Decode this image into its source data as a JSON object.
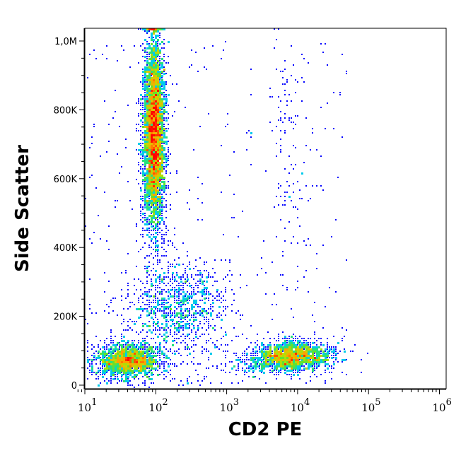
{
  "chart_data": {
    "type": "scatter",
    "subtype": "flow-cytometry density plot",
    "xlabel": "CD2 PE",
    "ylabel": "Side Scatter",
    "x_scale": "log",
    "xlim": [
      10,
      1100000
    ],
    "ylim": [
      0,
      1040000
    ],
    "x_ticks": [
      {
        "value": 10,
        "base": "10",
        "exp": "1"
      },
      {
        "value": 100,
        "base": "10",
        "exp": "2"
      },
      {
        "value": 1000,
        "base": "10",
        "exp": "3"
      },
      {
        "value": 10000,
        "base": "10",
        "exp": "4"
      },
      {
        "value": 100000,
        "base": "10",
        "exp": "5"
      },
      {
        "value": 1000000,
        "base": "10",
        "exp": "6"
      }
    ],
    "y_ticks": [
      {
        "value": 0,
        "label": "0"
      },
      {
        "value": 200000,
        "label": "200K"
      },
      {
        "value": 400000,
        "label": "400K"
      },
      {
        "value": 600000,
        "label": "600K"
      },
      {
        "value": 800000,
        "label": "800K"
      },
      {
        "value": 1000000,
        "label": "1,0M"
      }
    ],
    "grid": false,
    "color_scale": [
      "#0000ff",
      "#00a0ff",
      "#00e0e0",
      "#40e040",
      "#c0e000",
      "#ffa000",
      "#ff0000"
    ],
    "populations": [
      {
        "center_x": 40,
        "log_sd_x": 0.15,
        "center_y": 70000,
        "sd_y": 25000,
        "count": 1600
      },
      {
        "center_x": 95,
        "log_sd_x": 0.075,
        "center_y": 730000,
        "sd_y": 140000,
        "count": 4200
      },
      {
        "center_x": 200,
        "log_sd_x": 0.25,
        "center_y": 220000,
        "sd_y": 70000,
        "count": 1000
      },
      {
        "center_x": 8000,
        "log_sd_x": 0.2,
        "center_y": 82000,
        "sd_y": 22000,
        "count": 1700
      },
      {
        "center_x": 7000,
        "log_sd_x": 0.12,
        "center_y": 700000,
        "sd_y": 170000,
        "count": 90
      }
    ],
    "background_events": 450
  }
}
